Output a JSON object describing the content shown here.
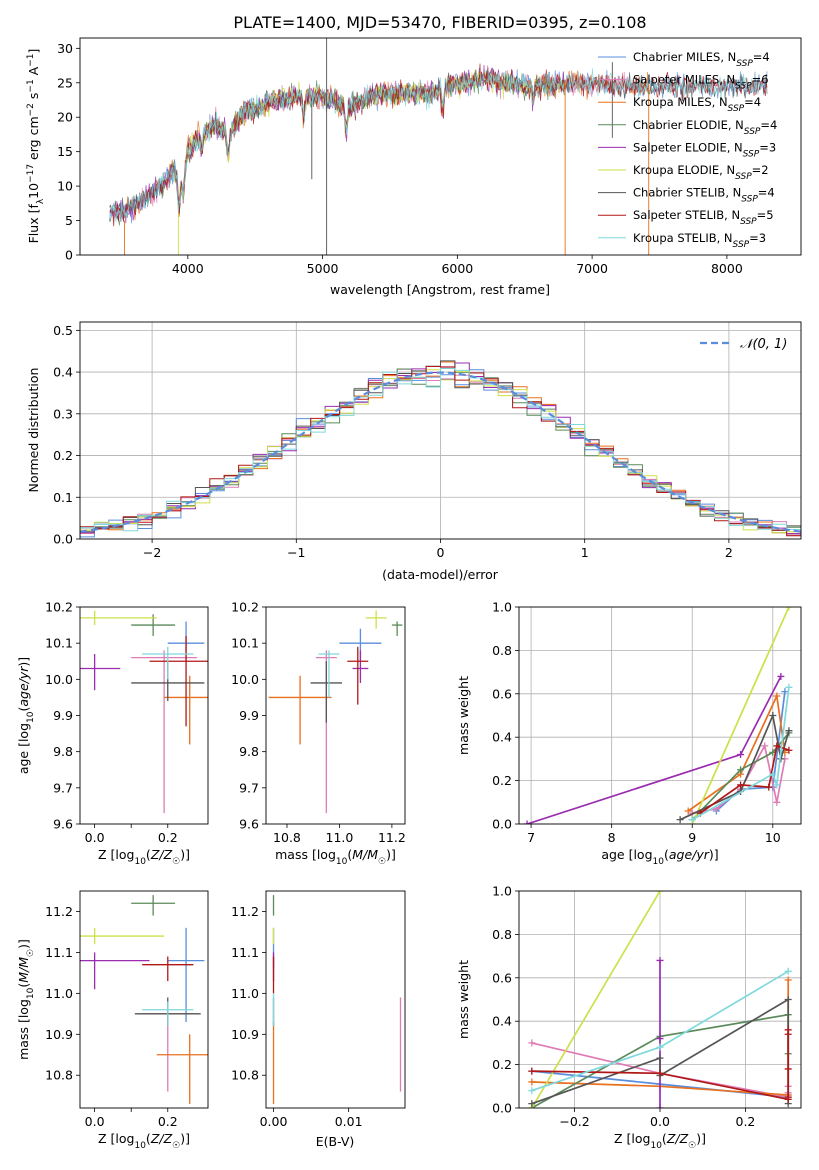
{
  "figure": {
    "title": "PLATE=1400, MJD=53470, FIBERID=0395, z=0.108"
  },
  "colors": {
    "Chabrier MILES": "#5b8ddd",
    "Salpeter MILES": "#e07bb5",
    "Kroupa MILES": "#e8701e",
    "Chabrier ELODIE": "#5a8a5a",
    "Salpeter ELODIE": "#9a2cb0",
    "Kroupa ELODIE": "#cde04a",
    "Chabrier STELIB": "#555555",
    "Salpeter STELIB": "#b01818",
    "Kroupa STELIB": "#7fd8dc",
    "normal": "#5b8ddd"
  },
  "chart_data": [
    {
      "id": "spectrum",
      "type": "line",
      "title": "PLATE=1400, MJD=53470, FIBERID=0395, z=0.108",
      "xlabel": "wavelength [Angstrom, rest frame]",
      "ylabel": "Flux [f_λ 10^-17 erg cm^-2 s^-1 A^-1]",
      "xlim": [
        3200,
        8550
      ],
      "ylim": [
        0,
        31.5
      ],
      "xticks": [
        "4000",
        "5000",
        "6000",
        "7000",
        "8000"
      ],
      "yticks": [
        "0",
        "5",
        "10",
        "15",
        "20",
        "25",
        "30"
      ],
      "legend_position": "right",
      "continuum": {
        "x": [
          3420,
          3600,
          3800,
          3900,
          3950,
          4000,
          4100,
          4200,
          4300,
          4400,
          4600,
          4800,
          5000,
          5200,
          5400,
          5600,
          5800,
          6000,
          6200,
          6500,
          6800,
          7200,
          7600,
          8000,
          8300
        ],
        "y": [
          6,
          7,
          10,
          12.5,
          11,
          15,
          17.5,
          19,
          17.5,
          20.5,
          22,
          23,
          23,
          21.5,
          23.5,
          23.5,
          23.5,
          25,
          25.5,
          24.5,
          25,
          24.5,
          24.5,
          24.5,
          24.5
        ]
      },
      "series": [
        {
          "name": "Chabrier MILES, N_SSP=4",
          "x": [
            3420,
            8300
          ],
          "range": [
            3420,
            8300
          ]
        },
        {
          "name": "Salpeter MILES, N_SSP=6",
          "x": [
            3530,
            7400
          ],
          "range": [
            3530,
            7400
          ]
        },
        {
          "name": "Kroupa MILES, N_SSP=4",
          "x": [
            3530,
            7420
          ],
          "range": [
            3530,
            7420
          ]
        },
        {
          "name": "Chabrier ELODIE, N_SSP=4",
          "x": [
            3420,
            6800
          ],
          "range": [
            3420,
            6800
          ]
        },
        {
          "name": "Salpeter ELODIE, N_SSP=3",
          "x": [
            3420,
            6800
          ],
          "range": [
            3420,
            6800
          ]
        },
        {
          "name": "Kroupa ELODIE, N_SSP=2",
          "x": [
            3930,
            6800
          ],
          "range": [
            3930,
            6800
          ]
        },
        {
          "name": "Chabrier STELIB, N_SSP=4",
          "x": [
            3420,
            8300
          ],
          "range": [
            3420,
            8300
          ]
        },
        {
          "name": "Salpeter STELIB, N_SSP=5",
          "x": [
            3420,
            8300
          ],
          "range": [
            3420,
            8300
          ]
        },
        {
          "name": "Kroupa STELIB, N_SSP=3",
          "x": [
            3420,
            8300
          ],
          "range": [
            3420,
            8300
          ]
        }
      ]
    },
    {
      "id": "residuals",
      "type": "line",
      "xlabel": "(data-model)/error",
      "ylabel": "Normed distribution",
      "xlim": [
        -2.5,
        2.5
      ],
      "ylim": [
        0,
        0.52
      ],
      "xticks": [
        "−2",
        "−1",
        "0",
        "1",
        "2"
      ],
      "yticks": [
        "0.0",
        "0.1",
        "0.2",
        "0.3",
        "0.4",
        "0.5"
      ],
      "legend": "𝒩(0, 1)",
      "legend_position": "top-right",
      "bin_width": 0.1
    },
    {
      "id": "age-vs-z",
      "type": "scatter",
      "xlabel": "Z [log10(Z/Z☉)]",
      "ylabel": "age  [log10(age/yr)]",
      "xlim": [
        -0.04,
        0.31
      ],
      "ylim": [
        9.6,
        10.2
      ],
      "xticks": [
        {
          "v": 0,
          "t": "0.0"
        },
        {
          "v": 0.1,
          "t": ""
        },
        {
          "v": 0.2,
          "t": "0.2"
        }
      ],
      "yticks": [
        "9.6",
        "9.7",
        "9.8",
        "9.9",
        "10.0",
        "10.1",
        "10.2"
      ],
      "points": [
        {
          "model": "Chabrier MILES",
          "x": 0.25,
          "xerr": 0.05,
          "y": 10.1,
          "ylo": 10.05,
          "yhi": 10.16
        },
        {
          "model": "Salpeter MILES",
          "x": 0.19,
          "xerr": 0.09,
          "y": 10.06,
          "ylo": 9.63,
          "yhi": 10.08
        },
        {
          "model": "Kroupa MILES",
          "x": 0.26,
          "xerr": 0.07,
          "y": 9.95,
          "ylo": 9.82,
          "yhi": 10.01
        },
        {
          "model": "Chabrier ELODIE",
          "x": 0.16,
          "xerr": 0.06,
          "y": 10.15,
          "ylo": 10.12,
          "yhi": 10.18
        },
        {
          "model": "Salpeter ELODIE",
          "x": 0.0,
          "xerr": 0.07,
          "y": 10.03,
          "ylo": 9.97,
          "yhi": 10.07
        },
        {
          "model": "Kroupa ELODIE",
          "x": 0.0,
          "xerr": 0.17,
          "y": 10.17,
          "ylo": 10.15,
          "yhi": 10.19
        },
        {
          "model": "Chabrier STELIB",
          "x": 0.2,
          "xerr": 0.1,
          "y": 9.99,
          "ylo": 9.94,
          "yhi": 10.05
        },
        {
          "model": "Salpeter STELIB",
          "x": 0.25,
          "xerr": 0.1,
          "y": 10.05,
          "ylo": 9.87,
          "yhi": 10.12
        },
        {
          "model": "Kroupa STELIB",
          "x": 0.2,
          "xerr": 0.07,
          "y": 10.07,
          "ylo": 10.0,
          "yhi": 10.09
        }
      ]
    },
    {
      "id": "age-vs-mass",
      "type": "scatter",
      "xlabel": "mass [log10(M/M☉)]",
      "ylabel": "",
      "xlim": [
        10.72,
        11.25
      ],
      "ylim": [
        9.6,
        10.2
      ],
      "xticks": [
        {
          "v": 10.8,
          "t": "10.8"
        },
        {
          "v": 11.0,
          "t": "11.0"
        },
        {
          "v": 11.2,
          "t": "11.2"
        }
      ],
      "yticks": [
        "9.6",
        "9.7",
        "9.8",
        "9.9",
        "10.0",
        "10.1",
        "10.2"
      ],
      "points": [
        {
          "model": "Chabrier MILES",
          "x": 11.08,
          "xerr": 0.08,
          "y": 10.1,
          "ylo": 10.05,
          "yhi": 10.14
        },
        {
          "model": "Salpeter MILES",
          "x": 10.95,
          "xerr": 0.04,
          "y": 10.06,
          "ylo": 9.63,
          "yhi": 10.08
        },
        {
          "model": "Kroupa MILES",
          "x": 10.85,
          "xerr": 0.12,
          "y": 9.95,
          "ylo": 9.82,
          "yhi": 10.01
        },
        {
          "model": "Chabrier ELODIE",
          "x": 11.22,
          "xerr": 0.02,
          "y": 10.15,
          "ylo": 10.12,
          "yhi": 10.16
        },
        {
          "model": "Salpeter ELODIE",
          "x": 11.08,
          "xerr": 0.03,
          "y": 10.03,
          "ylo": 9.99,
          "yhi": 10.08
        },
        {
          "model": "Kroupa ELODIE",
          "x": 11.14,
          "xerr": 0.04,
          "y": 10.17,
          "ylo": 10.14,
          "yhi": 10.19
        },
        {
          "model": "Chabrier STELIB",
          "x": 10.95,
          "xerr": 0.06,
          "y": 9.99,
          "ylo": 9.88,
          "yhi": 10.05
        },
        {
          "model": "Salpeter STELIB",
          "x": 11.07,
          "xerr": 0.04,
          "y": 10.05,
          "ylo": 9.93,
          "yhi": 10.09
        },
        {
          "model": "Kroupa STELIB",
          "x": 10.96,
          "xerr": 0.04,
          "y": 10.07,
          "ylo": 9.95,
          "yhi": 10.08
        }
      ]
    },
    {
      "id": "massweight-vs-age",
      "type": "line",
      "xlabel": "age  [log10(age/yr)]",
      "ylabel": "mass weight",
      "xlim": [
        6.85,
        10.35
      ],
      "ylim": [
        0,
        1
      ],
      "xticks": [
        "7",
        "8",
        "9",
        "10"
      ],
      "yticks": [
        "0.0",
        "0.2",
        "0.4",
        "0.6",
        "0.8",
        "1.0"
      ],
      "series": [
        {
          "model": "Chabrier MILES",
          "x": [
            9.3,
            9.6,
            10.0,
            10.15
          ],
          "y": [
            0.06,
            0.16,
            0.17,
            0.61
          ]
        },
        {
          "model": "Salpeter MILES",
          "x": [
            9.0,
            9.3,
            9.6,
            9.9,
            10.05,
            10.15
          ],
          "y": [
            0.05,
            0.07,
            0.16,
            0.36,
            0.1,
            0.3
          ]
        },
        {
          "model": "Kroupa MILES",
          "x": [
            8.95,
            9.6,
            10.05,
            10.15
          ],
          "y": [
            0.06,
            0.23,
            0.59,
            0.33
          ]
        },
        {
          "model": "Chabrier ELODIE",
          "x": [
            9.0,
            9.6,
            10.0,
            10.2
          ],
          "y": [
            0.02,
            0.25,
            0.33,
            0.42
          ]
        },
        {
          "model": "Salpeter ELODIE",
          "x": [
            6.95,
            9.6,
            10.1
          ],
          "y": [
            0.0,
            0.32,
            0.68
          ]
        },
        {
          "model": "Kroupa ELODIE",
          "x": [
            9.0,
            10.2
          ],
          "y": [
            0.0,
            1.0
          ]
        },
        {
          "model": "Chabrier STELIB",
          "x": [
            8.85,
            9.6,
            10.0,
            10.1,
            10.2
          ],
          "y": [
            0.02,
            0.15,
            0.5,
            0.3,
            0.43
          ]
        },
        {
          "model": "Salpeter STELIB",
          "x": [
            9.1,
            9.6,
            9.95,
            10.05,
            10.2
          ],
          "y": [
            0.05,
            0.18,
            0.17,
            0.36,
            0.34
          ]
        },
        {
          "model": "Kroupa STELIB",
          "x": [
            9.0,
            10.0,
            10.05,
            10.2
          ],
          "y": [
            0.02,
            0.23,
            0.18,
            0.63
          ]
        }
      ]
    },
    {
      "id": "mass-vs-z",
      "type": "scatter",
      "xlabel": "Z [log10(Z/Z☉)]",
      "ylabel": "mass [log10(M/M☉)]",
      "xlim": [
        -0.04,
        0.31
      ],
      "ylim": [
        10.72,
        11.25
      ],
      "xticks": [
        {
          "v": 0,
          "t": "0.0"
        },
        {
          "v": 0.1,
          "t": ""
        },
        {
          "v": 0.2,
          "t": "0.2"
        }
      ],
      "yticks": [
        "10.8",
        "10.9",
        "11.0",
        "11.1",
        "11.2"
      ],
      "points": [
        {
          "model": "Chabrier MILES",
          "x": 0.25,
          "xerr": 0.05,
          "y": 11.08,
          "ylo": 10.93,
          "yhi": 11.16
        },
        {
          "model": "Salpeter MILES",
          "x": 0.2,
          "xerr": 0.07,
          "y": 10.95,
          "ylo": 10.76,
          "yhi": 10.98
        },
        {
          "model": "Kroupa MILES",
          "x": 0.26,
          "xerr": 0.09,
          "y": 10.85,
          "ylo": 10.73,
          "yhi": 10.9
        },
        {
          "model": "Chabrier ELODIE",
          "x": 0.16,
          "xerr": 0.06,
          "y": 11.22,
          "ylo": 11.19,
          "yhi": 11.24
        },
        {
          "model": "Salpeter ELODIE",
          "x": 0.0,
          "xerr": 0.15,
          "y": 11.08,
          "ylo": 11.01,
          "yhi": 11.1
        },
        {
          "model": "Kroupa ELODIE",
          "x": 0.0,
          "xerr": 0.19,
          "y": 11.14,
          "ylo": 11.12,
          "yhi": 11.16
        },
        {
          "model": "Chabrier STELIB",
          "x": 0.2,
          "xerr": 0.09,
          "y": 10.95,
          "ylo": 10.92,
          "yhi": 10.99
        },
        {
          "model": "Salpeter STELIB",
          "x": 0.2,
          "xerr": 0.07,
          "y": 11.07,
          "ylo": 11.03,
          "yhi": 11.09
        },
        {
          "model": "Kroupa STELIB",
          "x": 0.2,
          "xerr": 0.07,
          "y": 10.96,
          "ylo": 10.92,
          "yhi": 10.98
        }
      ]
    },
    {
      "id": "mass-vs-ebv",
      "type": "scatter",
      "xlabel": "E(B-V)",
      "ylabel": "",
      "xlim": [
        -0.001,
        0.0175
      ],
      "ylim": [
        10.72,
        11.25
      ],
      "xticks": [
        {
          "v": 0,
          "t": "0.00"
        },
        {
          "v": 0.01,
          "t": "0.01"
        }
      ],
      "yticks": [
        "10.8",
        "10.9",
        "11.0",
        "11.1",
        "11.2"
      ],
      "points": [
        {
          "model": "Chabrier MILES",
          "x": 0.0,
          "xerr": 0,
          "y": 11.08,
          "ylo": 11.06,
          "yhi": 11.16
        },
        {
          "model": "Salpeter MILES",
          "x": 0.0169,
          "xerr": 0,
          "y": 10.9,
          "ylo": 10.76,
          "yhi": 10.99
        },
        {
          "model": "Kroupa MILES",
          "x": 0.0,
          "xerr": 0,
          "y": 10.85,
          "ylo": 10.73,
          "yhi": 10.93
        },
        {
          "model": "Chabrier ELODIE",
          "x": 0.0,
          "xerr": 0,
          "y": 11.22,
          "ylo": 11.19,
          "yhi": 11.24
        },
        {
          "model": "Salpeter ELODIE",
          "x": 0.0,
          "xerr": 0,
          "y": 11.08,
          "ylo": 11.03,
          "yhi": 11.1
        },
        {
          "model": "Kroupa ELODIE",
          "x": 0.0,
          "xerr": 0,
          "y": 11.14,
          "ylo": 11.12,
          "yhi": 11.16
        },
        {
          "model": "Chabrier STELIB",
          "x": 0.0,
          "xerr": 0,
          "y": 10.95,
          "ylo": 10.92,
          "yhi": 10.99
        },
        {
          "model": "Salpeter STELIB",
          "x": 0.0,
          "xerr": 0,
          "y": 11.07,
          "ylo": 11.0,
          "yhi": 11.09
        },
        {
          "model": "Kroupa STELIB",
          "x": 0.0,
          "xerr": 0,
          "y": 10.96,
          "ylo": 10.92,
          "yhi": 11.0
        }
      ]
    },
    {
      "id": "massweight-vs-z",
      "type": "line",
      "xlabel": "Z [log10(Z/Z☉)]",
      "ylabel": "mass weight",
      "xlim": [
        -0.33,
        0.33
      ],
      "ylim": [
        0,
        1
      ],
      "xticks": [
        {
          "v": -0.2,
          "t": "−0.2"
        },
        {
          "v": 0,
          "t": "0.0"
        },
        {
          "v": 0.2,
          "t": "0.2"
        }
      ],
      "yticks": [
        "0.0",
        "0.2",
        "0.4",
        "0.6",
        "0.8",
        "1.0"
      ],
      "series": [
        {
          "model": "Chabrier MILES",
          "x": [
            -0.3,
            0.0,
            0.3,
            0.3
          ],
          "y": [
            0.17,
            0.11,
            0.05,
            0.06
          ]
        },
        {
          "model": "Salpeter MILES",
          "x": [
            -0.3,
            0.0,
            0.3,
            0.3,
            0.3,
            0.3
          ],
          "y": [
            0.3,
            0.16,
            0.05,
            0.07,
            0.1,
            0.36
          ]
        },
        {
          "model": "Kroupa MILES",
          "x": [
            -0.3,
            0.0,
            0.3,
            0.3
          ],
          "y": [
            0.12,
            0.1,
            0.06,
            0.59
          ]
        },
        {
          "model": "Chabrier ELODIE",
          "x": [
            -0.3,
            0.0,
            0.3,
            0.3
          ],
          "y": [
            0.0,
            0.33,
            0.43,
            0.25
          ]
        },
        {
          "model": "Salpeter ELODIE",
          "x": [
            0.0,
            0.0,
            0.0
          ],
          "y": [
            0.0,
            0.32,
            0.68
          ]
        },
        {
          "model": "Kroupa ELODIE",
          "x": [
            -0.3,
            0.0
          ],
          "y": [
            0.0,
            1.0
          ]
        },
        {
          "model": "Chabrier STELIB",
          "x": [
            -0.3,
            0.0,
            0.0,
            0.3,
            0.3
          ],
          "y": [
            0.02,
            0.23,
            0.15,
            0.5,
            0.02
          ]
        },
        {
          "model": "Salpeter STELIB",
          "x": [
            -0.3,
            0.0,
            0.3,
            0.3,
            0.3,
            0.3,
            0.3
          ],
          "y": [
            0.17,
            0.16,
            0.04,
            0.18,
            0.34,
            0.36,
            0.05
          ]
        },
        {
          "model": "Kroupa STELIB",
          "x": [
            -0.3,
            0.0,
            0.3
          ],
          "y": [
            0.08,
            0.28,
            0.63
          ]
        }
      ]
    }
  ]
}
